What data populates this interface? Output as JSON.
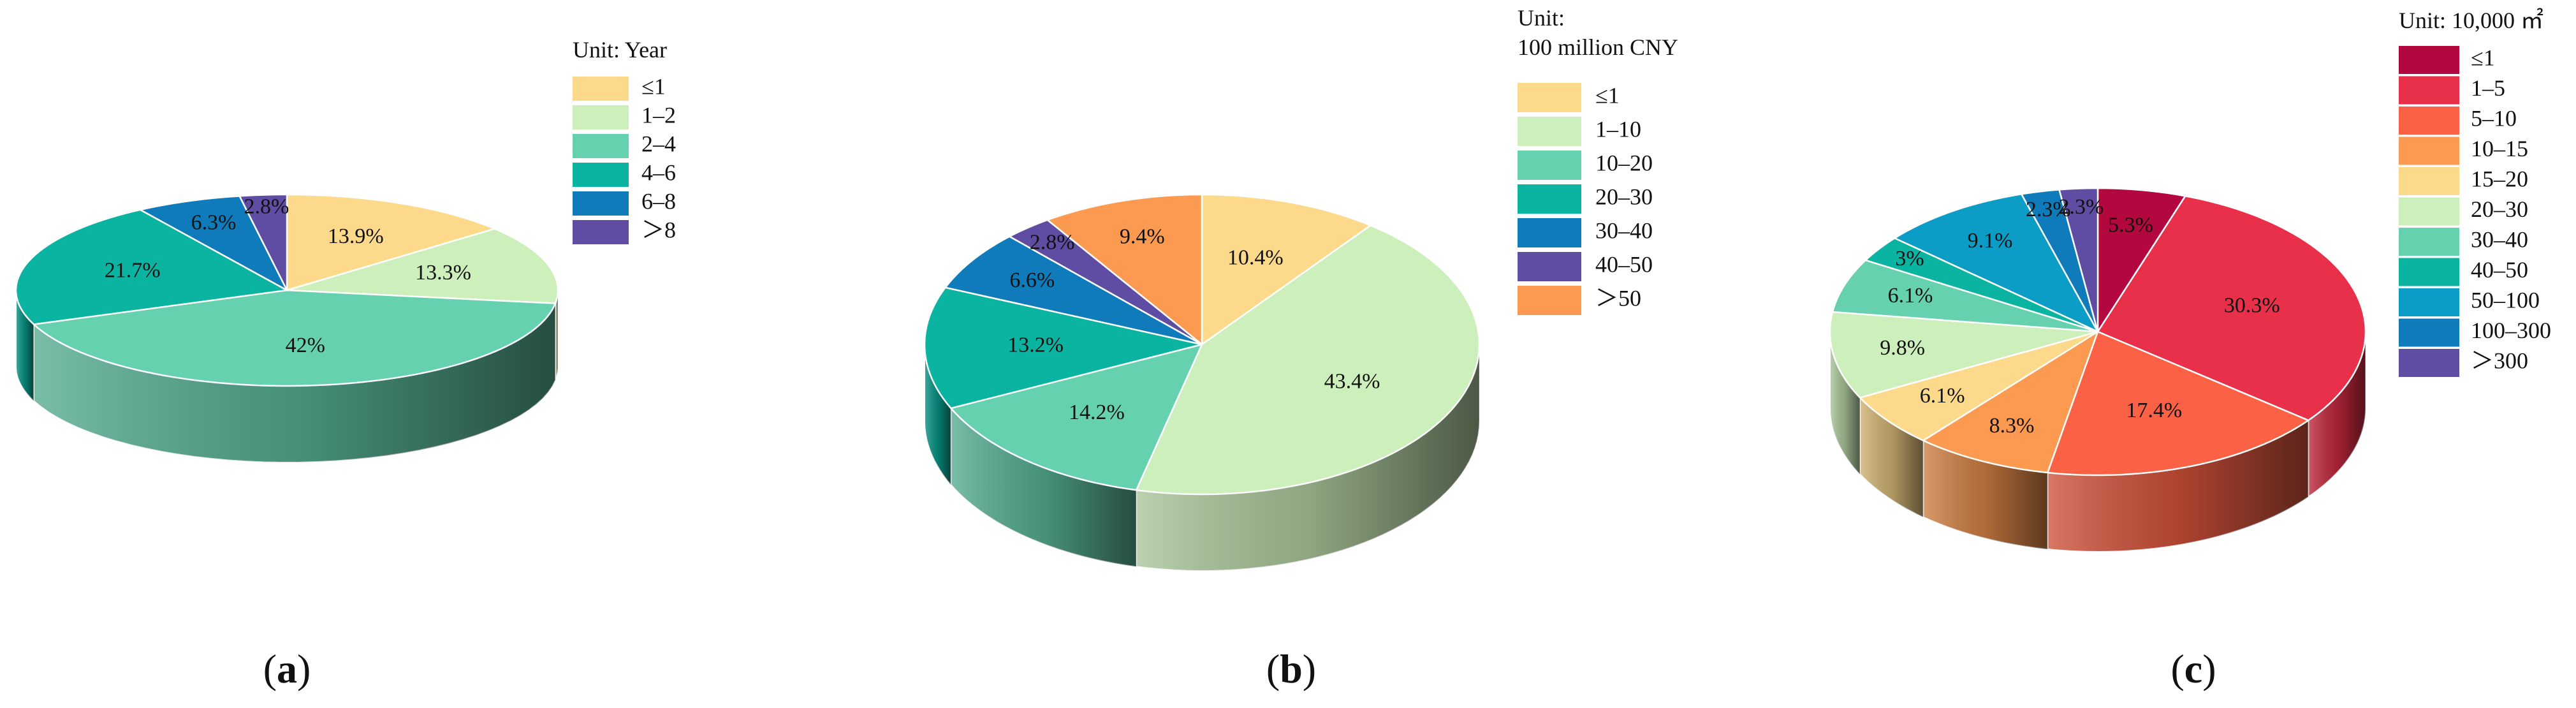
{
  "panels": [
    {
      "letter_open": "(",
      "letter": "a",
      "letter_close": ")"
    },
    {
      "letter_open": "(",
      "letter": "b",
      "letter_close": ")"
    },
    {
      "letter_open": "(",
      "letter": "c",
      "letter_close": ")"
    }
  ],
  "chart_data": [
    {
      "type": "pie",
      "legend_title": [
        "Unit: Year"
      ],
      "categories": [
        "≤1",
        "1–2",
        "2–4",
        "4–6",
        "6–8",
        "＞8"
      ],
      "values": [
        13.9,
        13.3,
        42,
        21.7,
        6.3,
        2.8
      ],
      "value_labels": [
        "13.9%",
        "13.3%",
        "42%",
        "21.7%",
        "6.3%",
        "2.8%"
      ],
      "colors": [
        "#FDD98C",
        "#CDEFBB",
        "#66D1AE",
        "#0BB3A1",
        "#0F7BBA",
        "#5E4DA2"
      ],
      "legend_position": "right",
      "start_angle": "12 o'clock",
      "direction": "clockwise"
    },
    {
      "type": "pie",
      "legend_title": [
        "Unit:",
        "100 million CNY"
      ],
      "categories": [
        "≤1",
        "1–10",
        "10–20",
        "20–30",
        "30–40",
        "40–50",
        "＞50"
      ],
      "values": [
        10.4,
        43.4,
        14.2,
        13.2,
        6.6,
        2.8,
        9.4
      ],
      "value_labels": [
        "10.4%",
        "43.4%",
        "14.2%",
        "13.2%",
        "6.6%",
        "2.8%",
        "9.4%"
      ],
      "colors": [
        "#FDD98C",
        "#CDEFBB",
        "#66D1AE",
        "#0BB3A1",
        "#0F7BBA",
        "#5E4DA2",
        "#FB9A50"
      ],
      "legend_position": "right",
      "start_angle": "12 o'clock",
      "direction": "clockwise"
    },
    {
      "type": "pie",
      "legend_title": [
        "Unit: 10,000 ㎡"
      ],
      "categories": [
        "≤1",
        "1–5",
        "5–10",
        "10–15",
        "15–20",
        "20–30",
        "30–40",
        "40–50",
        "50–100",
        "100–300",
        "＞300"
      ],
      "values": [
        5.3,
        30.3,
        17.4,
        8.3,
        6.1,
        9.8,
        6.1,
        3,
        9.1,
        2.3,
        2.3
      ],
      "value_labels": [
        "5.3%",
        "30.3%",
        "17.4%",
        "8.3%",
        "6.1%",
        "9.8%",
        "6.1%",
        "3%",
        "9.1%",
        "2.3%",
        "2.3%"
      ],
      "colors": [
        "#B3083F",
        "#E8304A",
        "#FA6145",
        "#FB9A50",
        "#FDD98C",
        "#CDEFBB",
        "#66D1AE",
        "#0BB3A1",
        "#0C9DC6",
        "#0F7BBA",
        "#5E4DA2"
      ],
      "legend_position": "right",
      "start_angle": "12 o'clock",
      "direction": "clockwise"
    }
  ]
}
